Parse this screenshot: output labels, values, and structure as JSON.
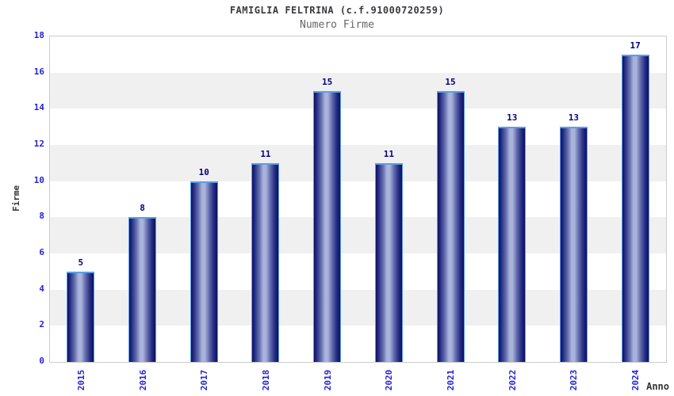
{
  "chart_data": {
    "type": "bar",
    "title": "FAMIGLIA FELTRINA (c.f.91000720259)",
    "subtitle": "Numero Firme",
    "categories": [
      "2015",
      "2016",
      "2017",
      "2018",
      "2019",
      "2020",
      "2021",
      "2022",
      "2023",
      "2024"
    ],
    "values": [
      5,
      8,
      10,
      11,
      15,
      11,
      15,
      13,
      13,
      17
    ],
    "xlabel": "Anno",
    "ylabel": "Firme",
    "ylim": [
      0,
      18
    ],
    "ytick_step": 2,
    "yticks": [
      0,
      2,
      4,
      6,
      8,
      10,
      12,
      14,
      16,
      18
    ],
    "legend": "none",
    "grid": "alternating horizontal bands every 2 units",
    "value_labels": "above each bar",
    "x_tick_rotation": "90deg vertical",
    "colors": {
      "bar_dark": "#0f0f60",
      "bar_shadow": "#262e84",
      "bar_mid": "#6770b0",
      "bar_light": "#aab3da",
      "bar_border": "#58a0e8",
      "tick_label": "#2424d6",
      "value_label": "#000080",
      "title": "#3a3a40",
      "subtitle": "#666666",
      "axis_label": "#333333",
      "band_gray": "#f0f0f0",
      "band_white": "#ffffff",
      "plot_border": "#cccccc",
      "background": "#ffffff"
    }
  }
}
